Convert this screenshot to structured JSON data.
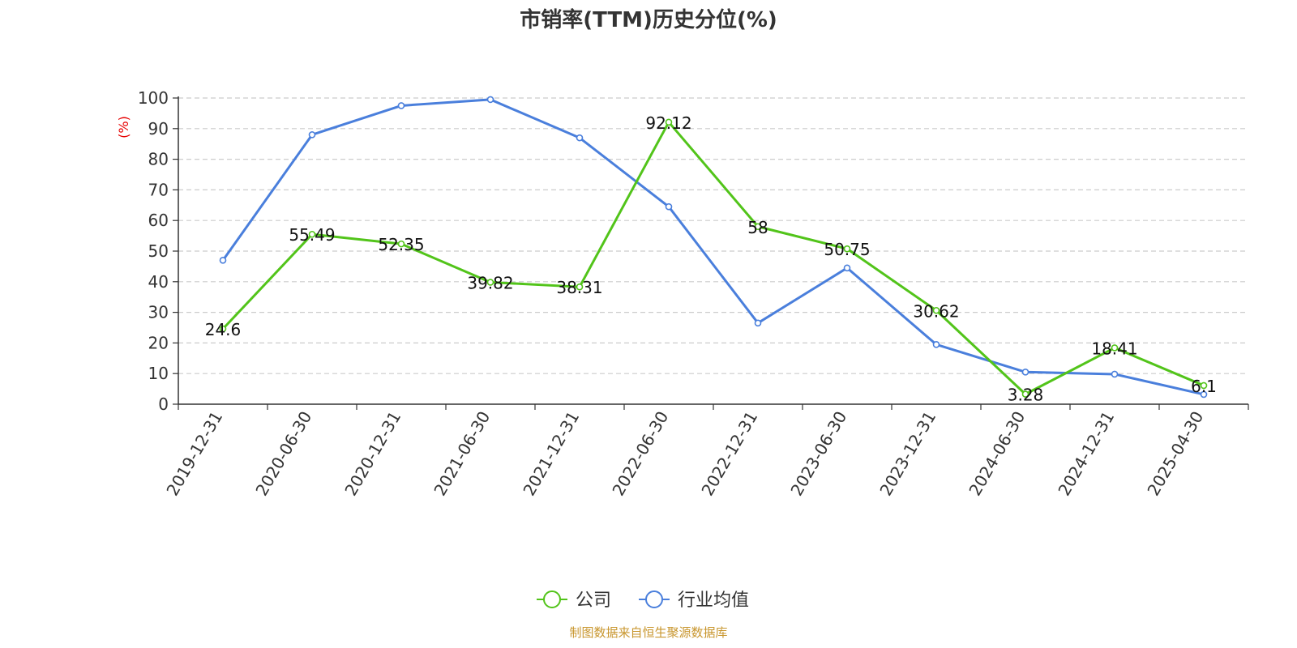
{
  "chart_data": {
    "type": "line",
    "title": "市销率(TTM)历史分位(%)",
    "ylabel": "(%)",
    "ylim": [
      0,
      100
    ],
    "yticks": [
      0,
      10,
      20,
      30,
      40,
      50,
      60,
      70,
      80,
      90,
      100
    ],
    "grid": true,
    "legend_position": "bottom",
    "x": [
      "2019-12-31",
      "2020-06-30",
      "2020-12-31",
      "2021-06-30",
      "2021-12-31",
      "2022-06-30",
      "2022-12-31",
      "2023-06-30",
      "2023-12-31",
      "2024-06-30",
      "2024-12-31",
      "2025-04-30"
    ],
    "series": [
      {
        "name": "公司",
        "color": "#52c41a",
        "values": [
          24.6,
          55.49,
          52.35,
          39.82,
          38.31,
          92.12,
          58,
          50.75,
          30.62,
          3.28,
          18.41,
          6.1
        ],
        "labels": [
          "24.6",
          "55.49",
          "52.35",
          "39.82",
          "38.31",
          "92.12",
          "58",
          "50.75",
          "30.62",
          "3.28",
          "18.41",
          "6.1"
        ]
      },
      {
        "name": "行业均值",
        "color": "#4a7fdc",
        "values": [
          47,
          88,
          97.5,
          99.5,
          87,
          64.5,
          26.5,
          44.5,
          19.5,
          10.5,
          9.8,
          3.2
        ]
      }
    ]
  },
  "source": "制图数据来自恒生聚源数据库"
}
